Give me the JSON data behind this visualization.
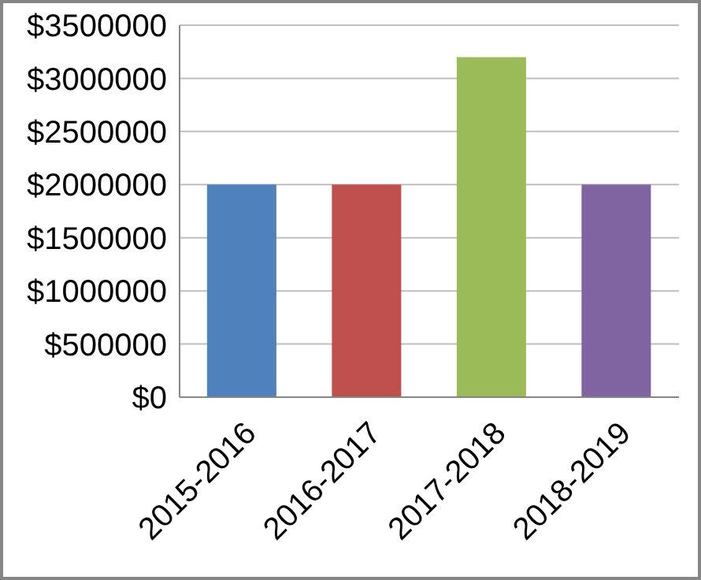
{
  "chart_data": {
    "type": "bar",
    "categories": [
      "2015-2016",
      "2016-2017",
      "2017-2018",
      "2018-2019"
    ],
    "values": [
      2000000,
      2000000,
      3200000,
      2000000
    ],
    "colors": [
      "#4f81bd",
      "#c0504d",
      "#9bbb59",
      "#8064a2"
    ],
    "ylim": [
      0,
      3500000
    ],
    "yticks": [
      {
        "value": 0,
        "label": "$0"
      },
      {
        "value": 500000,
        "label": "$500000"
      },
      {
        "value": 1000000,
        "label": "$1000000"
      },
      {
        "value": 1500000,
        "label": "$1500000"
      },
      {
        "value": 2000000,
        "label": "$2000000"
      },
      {
        "value": 2500000,
        "label": "$2500000"
      },
      {
        "value": 3000000,
        "label": "$3000000"
      },
      {
        "value": 3500000,
        "label": "$3500000"
      }
    ],
    "grid": "y",
    "legend": false
  }
}
